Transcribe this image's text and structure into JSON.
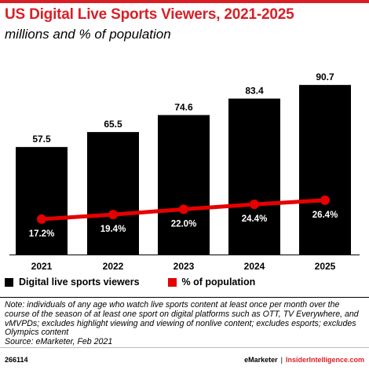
{
  "title": "US Digital Live Sports Viewers, 2021-2025",
  "subtitle": "millions and % of population",
  "colors": {
    "bar": "#000000",
    "line": "#e60000",
    "accent": "#d91f26"
  },
  "chart_data": {
    "type": "bar",
    "categories": [
      "2021",
      "2022",
      "2023",
      "2024",
      "2025"
    ],
    "series": [
      {
        "name": "Digital live sports viewers",
        "type": "bar",
        "values": [
          57.5,
          65.5,
          74.6,
          83.4,
          90.7
        ],
        "labels": [
          "57.5",
          "65.5",
          "74.6",
          "83.4",
          "90.7"
        ]
      },
      {
        "name": "% of population",
        "type": "line",
        "values": [
          17.2,
          19.4,
          22.0,
          24.4,
          26.4
        ],
        "labels": [
          "17.2%",
          "19.4%",
          "22.0%",
          "24.4%",
          "26.4%"
        ]
      }
    ],
    "legend": "bottom-left",
    "grid": false
  },
  "legend": {
    "viewers": "Digital live sports viewers",
    "population": "% of population"
  },
  "note": "Note: individuals of any age who watch live sports content at least once per month over the course of the season of at least one sport on digital platforms such as OTT, TV Everywhere, and vMVPDs; excludes highlight viewing and viewing of nonlive content; excludes esports; excludes Olympics content",
  "source": "Source: eMarketer, Feb 2021",
  "footer": {
    "id": "266114",
    "brand1": "eMarketer",
    "separator": "|",
    "brand2": "InsiderIntelligence.com"
  }
}
